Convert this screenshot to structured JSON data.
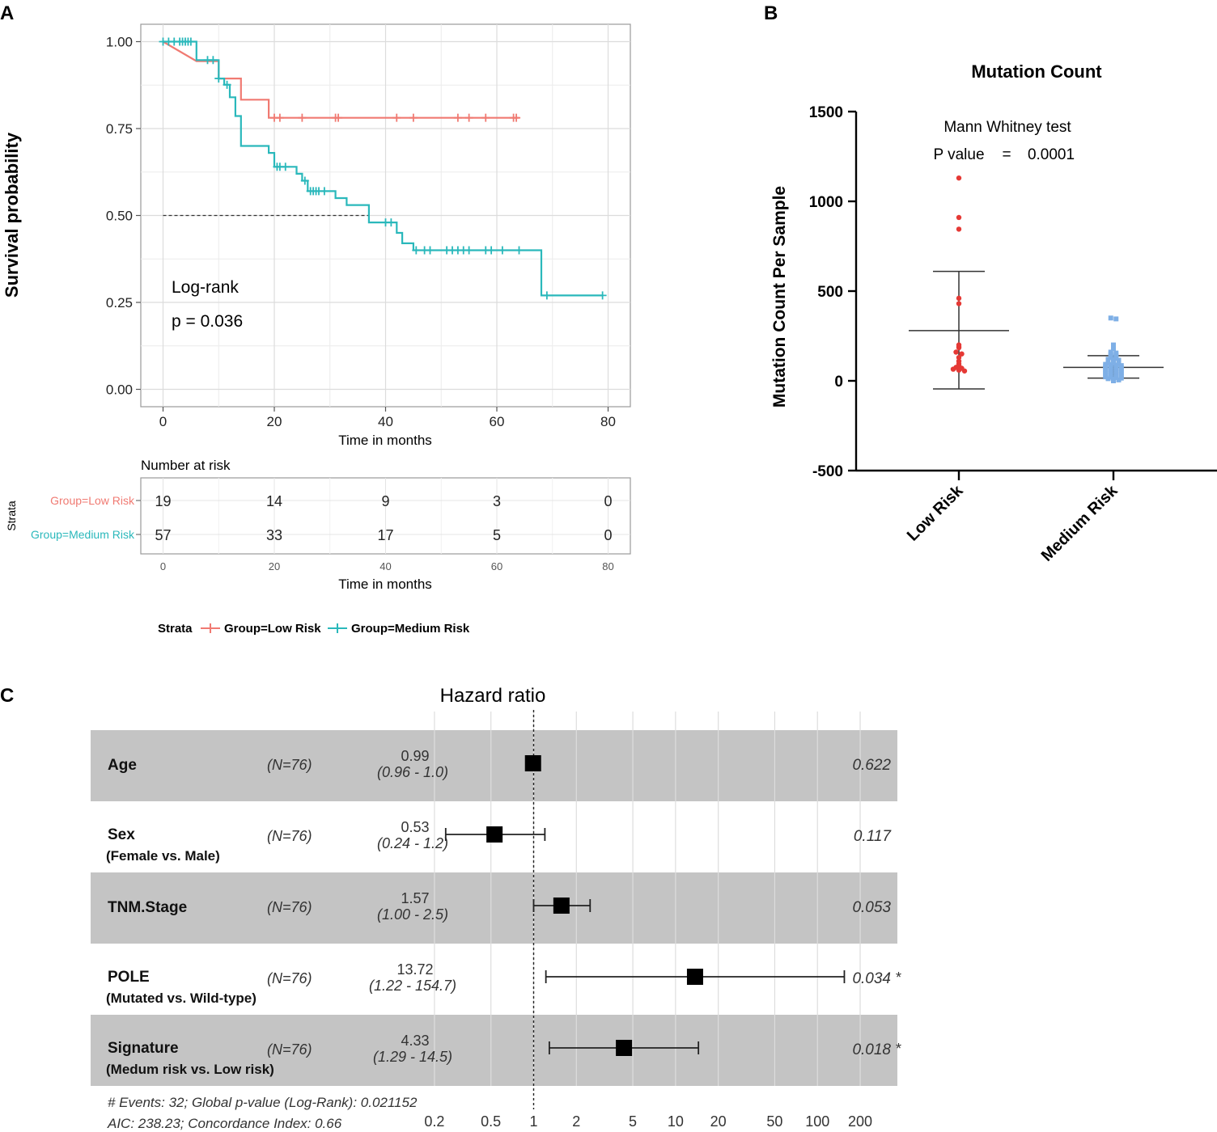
{
  "panels": {
    "a": "A",
    "b": "B",
    "c": "C"
  },
  "colors": {
    "low": "#F07A72",
    "medium": "#2AB8BB",
    "panel_bg": "#c4c4c4",
    "grid": "#e2e2e2",
    "dot_red": "#E53935",
    "dot_blue": "#7EAFE6"
  },
  "chart_data": [
    {
      "id": "km",
      "type": "line",
      "title": "",
      "xlabel": "Time in months",
      "ylabel": "Survival probability",
      "xlim": [
        -4,
        84
      ],
      "ylim": [
        -0.05,
        1.05
      ],
      "x_ticks": [
        0,
        20,
        40,
        60,
        80
      ],
      "y_ticks": [
        0.0,
        0.25,
        0.5,
        0.75,
        1.0
      ],
      "y_tick_labels": [
        "0.00",
        "0.25",
        "0.50",
        "0.75",
        "1.00"
      ],
      "annotation": [
        "Log-rank",
        "p = 0.036"
      ],
      "median_line": {
        "y": 0.5,
        "x_from": 0,
        "x_to": 37
      },
      "series": [
        {
          "name": "Group=Low Risk",
          "color": "#F07A72",
          "steps": [
            [
              0,
              1.0
            ],
            [
              6,
              0.944
            ],
            [
              10,
              0.944
            ],
            [
              10,
              0.894
            ],
            [
              14,
              0.894
            ],
            [
              14,
              0.833
            ],
            [
              19,
              0.833
            ],
            [
              19,
              0.781
            ],
            [
              64,
              0.781
            ]
          ],
          "censors": [
            [
              20,
              0.781
            ],
            [
              21,
              0.781
            ],
            [
              25,
              0.781
            ],
            [
              31,
              0.781
            ],
            [
              31.5,
              0.781
            ],
            [
              42,
              0.781
            ],
            [
              45,
              0.781
            ],
            [
              53,
              0.781
            ],
            [
              55,
              0.781
            ],
            [
              58,
              0.781
            ],
            [
              63,
              0.781
            ],
            [
              63.5,
              0.781
            ]
          ]
        },
        {
          "name": "Group=Medium Risk",
          "color": "#2AB8BB",
          "steps": [
            [
              0,
              1.0
            ],
            [
              6,
              1.0
            ],
            [
              6,
              0.947
            ],
            [
              10,
              0.947
            ],
            [
              10,
              0.894
            ],
            [
              11,
              0.894
            ],
            [
              11,
              0.876
            ],
            [
              12,
              0.876
            ],
            [
              12,
              0.84
            ],
            [
              13,
              0.84
            ],
            [
              13,
              0.786
            ],
            [
              14,
              0.786
            ],
            [
              14,
              0.7
            ],
            [
              19,
              0.7
            ],
            [
              19,
              0.68
            ],
            [
              20,
              0.68
            ],
            [
              20,
              0.64
            ],
            [
              24,
              0.64
            ],
            [
              24,
              0.62
            ],
            [
              25,
              0.62
            ],
            [
              25,
              0.6
            ],
            [
              26,
              0.6
            ],
            [
              26,
              0.57
            ],
            [
              31,
              0.57
            ],
            [
              31,
              0.55
            ],
            [
              33,
              0.55
            ],
            [
              33,
              0.53
            ],
            [
              37,
              0.53
            ],
            [
              37,
              0.48
            ],
            [
              42,
              0.48
            ],
            [
              42,
              0.45
            ],
            [
              43,
              0.45
            ],
            [
              43,
              0.42
            ],
            [
              45,
              0.42
            ],
            [
              45,
              0.4
            ],
            [
              68,
              0.4
            ],
            [
              68,
              0.27
            ],
            [
              79,
              0.27
            ]
          ],
          "censors": [
            [
              0,
              1.0
            ],
            [
              1,
              1.0
            ],
            [
              2,
              1.0
            ],
            [
              3,
              1.0
            ],
            [
              3.5,
              1.0
            ],
            [
              4,
              1.0
            ],
            [
              4.5,
              1.0
            ],
            [
              5,
              1.0
            ],
            [
              8,
              0.947
            ],
            [
              9,
              0.947
            ],
            [
              10,
              0.894
            ],
            [
              11.5,
              0.876
            ],
            [
              20.5,
              0.64
            ],
            [
              21,
              0.64
            ],
            [
              22,
              0.64
            ],
            [
              25.5,
              0.6
            ],
            [
              26.5,
              0.57
            ],
            [
              27,
              0.57
            ],
            [
              27.5,
              0.57
            ],
            [
              28,
              0.57
            ],
            [
              29,
              0.57
            ],
            [
              40,
              0.48
            ],
            [
              41,
              0.48
            ],
            [
              45.5,
              0.4
            ],
            [
              47,
              0.4
            ],
            [
              48,
              0.4
            ],
            [
              51,
              0.4
            ],
            [
              52,
              0.4
            ],
            [
              53,
              0.4
            ],
            [
              54,
              0.4
            ],
            [
              55,
              0.4
            ],
            [
              58,
              0.4
            ],
            [
              59,
              0.4
            ],
            [
              61,
              0.4
            ],
            [
              64,
              0.4
            ],
            [
              69,
              0.27
            ],
            [
              79,
              0.27
            ]
          ]
        }
      ]
    },
    {
      "id": "risk_table",
      "type": "table",
      "title": "Number at risk",
      "strata_label": "Strata",
      "xlabel": "Time in months",
      "x_ticks": [
        0,
        20,
        40,
        60,
        80
      ],
      "rows": [
        {
          "name": "Group=Low Risk",
          "color": "#F07A72",
          "values": [
            "19",
            "14",
            "9",
            "3",
            "0"
          ]
        },
        {
          "name": "Group=Medium Risk",
          "color": "#2AB8BB",
          "values": [
            "57",
            "33",
            "17",
            "5",
            "0"
          ]
        }
      ]
    },
    {
      "id": "legend",
      "type": "table",
      "title": "Strata",
      "entries": [
        {
          "label": "Group=Low Risk",
          "color": "#F07A72"
        },
        {
          "label": "Group=Medium Risk",
          "color": "#2AB8BB"
        }
      ]
    },
    {
      "id": "mutation",
      "type": "scatter",
      "title": "Mutation Count",
      "ylabel": "Mutation Count Per Sample",
      "xlabel": "",
      "ylim": [
        -500,
        1500
      ],
      "y_ticks": [
        -500,
        0,
        500,
        1000,
        1500
      ],
      "categories": [
        "Low Risk",
        "Medium Risk"
      ],
      "annotation": {
        "test": "Mann Whitney  test",
        "p_label": "P value",
        "p_eq": "=",
        "p_value": "0.0001"
      },
      "groups": [
        {
          "name": "Low Risk",
          "color": "#E53935",
          "marker": "circle",
          "mean": 280,
          "upper": 610,
          "lower": -45,
          "values": [
            1130,
            910,
            845,
            460,
            430,
            200,
            190,
            185,
            160,
            150,
            130,
            110,
            95,
            85,
            75,
            70,
            65,
            60,
            55
          ]
        },
        {
          "name": "Medium Risk",
          "color": "#7EAFE6",
          "marker": "square",
          "mean": 75,
          "upper": 140,
          "lower": 15,
          "values": [
            350,
            345,
            200,
            180,
            160,
            155,
            150,
            145,
            140,
            135,
            130,
            125,
            120,
            118,
            115,
            110,
            108,
            105,
            100,
            98,
            95,
            92,
            90,
            88,
            85,
            82,
            80,
            78,
            75,
            72,
            70,
            68,
            65,
            62,
            60,
            58,
            55,
            52,
            50,
            48,
            45,
            42,
            40,
            38,
            35,
            32,
            30,
            28,
            25,
            22,
            20,
            18,
            15,
            12,
            10,
            5,
            0
          ]
        }
      ]
    },
    {
      "id": "forest",
      "type": "scatter",
      "title": "Hazard ratio",
      "x_scale": "log",
      "xlim": [
        0.15,
        260
      ],
      "x_ticks": [
        0.2,
        0.5,
        1,
        2,
        5,
        10,
        20,
        50,
        100,
        200
      ],
      "x_tick_labels": [
        "0.2",
        "0.5",
        "1",
        "2",
        "5",
        "10",
        "20",
        "50",
        "100",
        "200"
      ],
      "reference": 1,
      "rows": [
        {
          "label": "Age",
          "sub": "",
          "n": "(N=76)",
          "hr_text": "0.99",
          "ci_text": "(0.96 -   1.0)",
          "p": "0.622",
          "star": "",
          "hr": 0.99,
          "lo": 0.96,
          "hi": 1.0,
          "shaded": true
        },
        {
          "label": "Sex",
          "sub": "(Female vs. Male)",
          "n": "(N=76)",
          "hr_text": "0.53",
          "ci_text": "(0.24 -   1.2)",
          "p": "0.117",
          "star": "",
          "hr": 0.53,
          "lo": 0.24,
          "hi": 1.2,
          "shaded": false
        },
        {
          "label": "TNM.Stage",
          "sub": "",
          "n": "(N=76)",
          "hr_text": "1.57",
          "ci_text": "(1.00 -   2.5)",
          "p": "0.053",
          "star": "",
          "hr": 1.57,
          "lo": 1.0,
          "hi": 2.5,
          "shaded": true
        },
        {
          "label": "POLE",
          "sub": "(Mutated vs. Wild-type)",
          "n": "(N=76)",
          "hr_text": "13.72",
          "ci_text": "(1.22 - 154.7)",
          "p": "0.034",
          "star": "*",
          "hr": 13.72,
          "lo": 1.22,
          "hi": 154.7,
          "shaded": false
        },
        {
          "label": "Signature",
          "sub": "(Medum risk vs. Low risk)",
          "n": "(N=76)",
          "hr_text": "4.33",
          "ci_text": "(1.29 -  14.5)",
          "p": "0.018",
          "star": "*",
          "hr": 4.33,
          "lo": 1.29,
          "hi": 14.5,
          "shaded": true
        }
      ],
      "footer": [
        "# Events: 32; Global p-value (Log-Rank): 0.021152",
        "AIC: 238.23; Concordance Index: 0.66"
      ]
    }
  ]
}
